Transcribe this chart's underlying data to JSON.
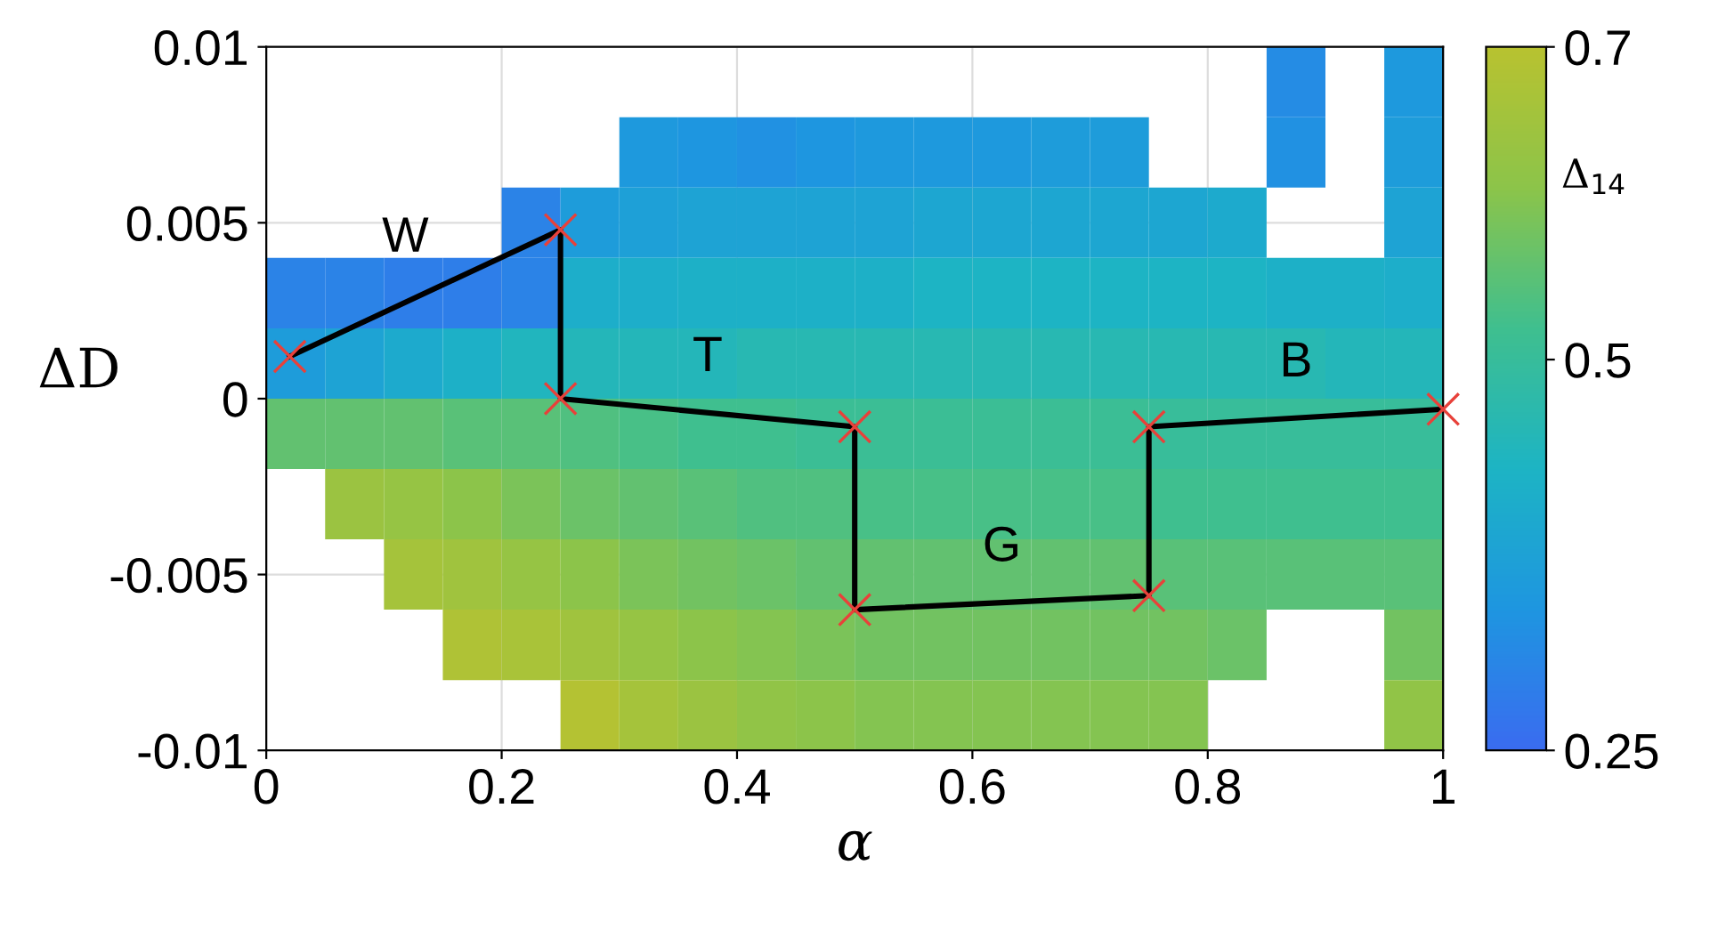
{
  "chart_data": {
    "type": "heatmap",
    "xlabel": "α",
    "ylabel": "ΔD",
    "clabel": "Δ$_{14}$",
    "x": [
      0.025,
      0.075,
      0.125,
      0.175,
      0.225,
      0.275,
      0.325,
      0.375,
      0.425,
      0.475,
      0.525,
      0.575,
      0.625,
      0.675,
      0.725,
      0.775,
      0.825,
      0.875,
      0.925,
      0.975
    ],
    "y": [
      0.009,
      0.007,
      0.005,
      0.003,
      0.001,
      -0.001,
      -0.003,
      -0.005,
      -0.007,
      -0.009
    ],
    "cells": [
      [
        null,
        null,
        null,
        null,
        null,
        null,
        null,
        null,
        null,
        null,
        null,
        null,
        null,
        null,
        null,
        null,
        null,
        0.32,
        null,
        0.35
      ],
      [
        null,
        null,
        null,
        null,
        null,
        null,
        0.35,
        0.34,
        0.33,
        0.34,
        0.35,
        0.35,
        0.35,
        0.36,
        0.36,
        null,
        null,
        0.33,
        null,
        0.36
      ],
      [
        null,
        null,
        null,
        null,
        0.3,
        0.36,
        0.37,
        0.38,
        0.38,
        0.38,
        0.38,
        0.39,
        0.39,
        0.39,
        0.39,
        0.39,
        0.4,
        null,
        null,
        0.38
      ],
      [
        0.3,
        0.3,
        0.29,
        0.29,
        0.3,
        0.41,
        0.41,
        0.42,
        0.42,
        0.42,
        0.42,
        0.43,
        0.43,
        0.43,
        0.43,
        0.43,
        0.43,
        0.42,
        0.42,
        0.41
      ],
      [
        0.36,
        0.38,
        0.4,
        0.42,
        0.44,
        0.45,
        0.45,
        0.45,
        0.46,
        0.46,
        0.46,
        0.46,
        0.46,
        0.46,
        0.46,
        0.46,
        0.46,
        0.46,
        0.45,
        0.45
      ],
      [
        0.56,
        0.56,
        0.56,
        0.55,
        0.55,
        0.54,
        0.53,
        0.52,
        0.52,
        0.51,
        0.51,
        0.51,
        0.51,
        0.51,
        0.51,
        0.5,
        0.5,
        0.5,
        0.5,
        0.5
      ],
      [
        null,
        0.64,
        0.63,
        0.61,
        0.59,
        0.57,
        0.56,
        0.55,
        0.54,
        0.54,
        0.53,
        0.53,
        0.53,
        0.53,
        0.53,
        0.52,
        0.52,
        0.52,
        0.52,
        0.52
      ],
      [
        null,
        null,
        0.66,
        0.65,
        0.63,
        0.61,
        0.59,
        0.58,
        0.57,
        0.56,
        0.56,
        0.56,
        0.56,
        0.56,
        0.56,
        0.55,
        0.55,
        0.55,
        0.55,
        0.55
      ],
      [
        null,
        null,
        null,
        0.68,
        0.67,
        0.65,
        0.63,
        0.61,
        0.6,
        0.59,
        0.58,
        0.58,
        0.58,
        0.58,
        0.58,
        0.58,
        0.57,
        null,
        null,
        0.58
      ],
      [
        null,
        null,
        null,
        null,
        null,
        0.69,
        0.66,
        0.64,
        0.62,
        0.61,
        0.6,
        0.6,
        0.6,
        0.6,
        0.6,
        0.6,
        null,
        null,
        null,
        0.62
      ]
    ],
    "clim": [
      0.25,
      0.7
    ],
    "cticks": [
      0.25,
      0.5,
      0.7
    ],
    "series": [
      {
        "type": "line",
        "color": "#000000",
        "marker": "none",
        "x": [
          0.02,
          0.25,
          0.25,
          0.5,
          0.5,
          0.75,
          0.75,
          1
        ],
        "values": [
          0.0012,
          0.0048,
          0,
          -0.0008,
          -0.006,
          -0.0056,
          -0.0008,
          -0.0003
        ]
      },
      {
        "type": "scatter",
        "color": "#e8413a",
        "marker": "cross",
        "x": [
          0.02,
          0.25,
          0.25,
          0.5,
          0.5,
          0.75,
          0.75,
          1
        ],
        "values": [
          0.0012,
          0.0048,
          0,
          -0.0008,
          -0.006,
          -0.0056,
          -0.0008,
          -0.0003
        ]
      }
    ],
    "annotations": [
      "W",
      "T",
      "G",
      "B"
    ],
    "xlim": [
      0,
      1
    ],
    "ylim": [
      -0.01,
      0.01
    ],
    "xticks": [
      0,
      0.2,
      0.4,
      0.6,
      0.8,
      1
    ],
    "yticks": [
      {
        "value": -0.01,
        "label": "-0.01"
      },
      {
        "value": -0.005,
        "label": "-0.005"
      },
      0,
      0.005,
      0.01
    ],
    "grid": true
  }
}
